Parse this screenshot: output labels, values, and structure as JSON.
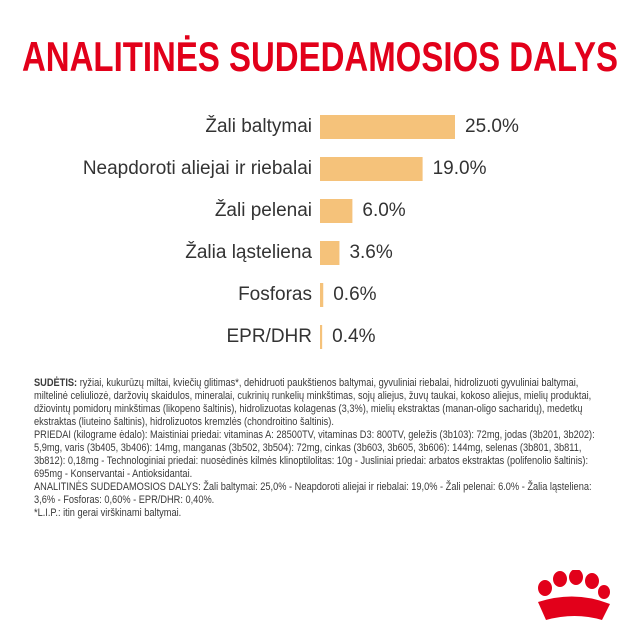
{
  "chart_data": {
    "type": "bar",
    "orientation": "horizontal",
    "title": "ANALITINĖS SUDEDAMOSIOS DALYS",
    "categories": [
      "Žali baltymai",
      "Neapdoroti aliejai ir riebalai",
      "Žali pelenai",
      "Žalia ląsteliena",
      "Fosforas",
      "EPR/DHR"
    ],
    "values": [
      25.0,
      19.0,
      6.0,
      3.6,
      0.6,
      0.4
    ],
    "value_labels": [
      "25.0%",
      "19.0%",
      "6.0%",
      "3.6%",
      "0.6%",
      "0.4%"
    ],
    "color": "#f5c27a"
  },
  "composition": {
    "heading": "SUDĖTIS:",
    "paragraphs": [
      "ryžiai, kukurūzų miltai, kviečių glitimas*, dehidruoti paukštienos baltymai, gyvuliniai riebalai, hidrolizuoti gyvuliniai baltymai, miltelinė celiuliozė, daržovių skaidulos, mineralai, cukrinių runkelių minkštimas, sojų aliejus, žuvų taukai, kokoso aliejus, mielių produktai, džiovintų pomidorų minkštimas (likopeno šaltinis), hidrolizuotas kolagenas (3,3%), mielių ekstraktas (manan-oligo sacharidų), medetkų ekstraktas (liuteino šaltinis), hidrolizuotos kremzlės (chondroitino šaltinis).",
      "PRIEDAI (kilograme ėdalo): Maistiniai priedai: vitaminas A: 28500TV, vitaminas D3: 800TV, geležis (3b103): 72mg, jodas (3b201, 3b202): 5,9mg, varis (3b405, 3b406): 14mg, manganas (3b502, 3b504): 72mg, cinkas (3b603, 3b605, 3b606): 144mg, selenas (3b801, 3b811, 3b812): 0,18mg - Technologiniai priedai: nuosėdinės kilmės klinoptilolitas: 10g - Juslіniai priedai: arbatos ekstraktas (polifenolio šaltinis): 695mg - Konservantai - Antioksidantai.",
      "ANALITINĖS SUDEDAMOSIOS DALYS: Žali baltymai: 25,0% - Neapdoroti aliejai ir riebalai: 19,0% - Žali pelenai: 6.0% - Žalia ląsteliena: 3,6% - Fosforas: 0,60% - EPR/DHR: 0,40%.",
      "*L.I.P.: itin gerai virškinami baltymai."
    ]
  }
}
